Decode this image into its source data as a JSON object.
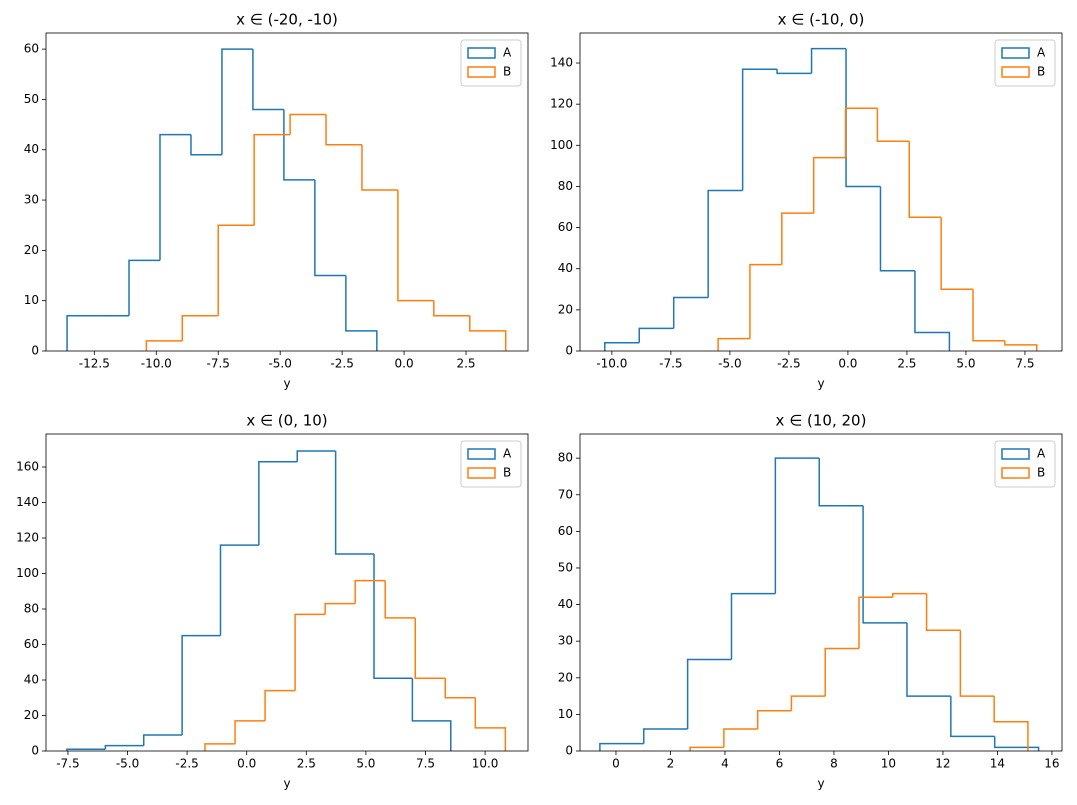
{
  "chart_data": [
    {
      "type": "histogram",
      "title": "x ∈ (-20, -10)",
      "x_label": "y",
      "legend": "upper right",
      "xlim": [
        -14.45,
        5.0
      ],
      "ylim": [
        0,
        63.2
      ],
      "xticks": [
        -12.5,
        {
          "value": -10,
          "label": "-10.0"
        },
        -7.5,
        {
          "value": -5,
          "label": "-5.0"
        },
        -2.5,
        {
          "value": 0,
          "label": "0.0"
        },
        2.5
      ],
      "yticks": [
        0,
        10,
        20,
        30,
        40,
        50,
        60
      ],
      "series": [
        {
          "name": "A",
          "color": "#1f77b4",
          "bins": [
            -13.6,
            -12.35,
            -11.1,
            -9.85,
            -8.6,
            -7.35,
            -6.1,
            -4.85,
            -3.6,
            -2.35,
            -1.1
          ],
          "values": [
            7,
            7,
            18,
            43,
            39,
            60,
            48,
            34,
            15,
            4
          ]
        },
        {
          "name": "B",
          "color": "#ff7f0e",
          "bins": [
            -10.4,
            -8.95,
            -7.5,
            -6.05,
            -4.6,
            -3.15,
            -1.7,
            -0.25,
            1.2,
            2.65,
            4.1
          ],
          "values": [
            2,
            7,
            25,
            43,
            47,
            41,
            32,
            10,
            7,
            4
          ]
        }
      ]
    },
    {
      "type": "histogram",
      "title": "x ∈ (-10, 0)",
      "x_label": "y",
      "legend": "upper right",
      "xlim": [
        -11.35,
        9.07
      ],
      "ylim": [
        0,
        154.6
      ],
      "xticks": [
        {
          "value": -10,
          "label": "-10.0"
        },
        -7.5,
        {
          "value": -5,
          "label": "-5.0"
        },
        -2.5,
        {
          "value": 0,
          "label": "0.0"
        },
        2.5,
        {
          "value": 5,
          "label": "5.0"
        },
        7.5
      ],
      "yticks": [
        0,
        20,
        40,
        60,
        80,
        100,
        120,
        140
      ],
      "series": [
        {
          "name": "A",
          "color": "#1f77b4",
          "bins": [
            -10.3,
            -8.84,
            -7.38,
            -5.92,
            -4.46,
            -3.0,
            -1.54,
            -0.08,
            1.38,
            2.84,
            4.3
          ],
          "values": [
            4,
            11,
            26,
            78,
            137,
            135,
            147,
            80,
            39,
            9
          ]
        },
        {
          "name": "B",
          "color": "#ff7f0e",
          "bins": [
            -5.5,
            -4.15,
            -2.8,
            -1.45,
            -0.1,
            1.25,
            2.6,
            3.95,
            5.3,
            6.65,
            8.0
          ],
          "values": [
            6,
            42,
            67,
            94,
            118,
            102,
            65,
            30,
            5,
            3
          ]
        }
      ]
    },
    {
      "type": "histogram",
      "title": "x ∈ (0, 10)",
      "x_label": "y",
      "legend": "upper right",
      "xlim": [
        -8.42,
        11.8
      ],
      "ylim": [
        0,
        178.6
      ],
      "xticks": [
        -7.5,
        {
          "value": -5,
          "label": "-5.0"
        },
        -2.5,
        {
          "value": 0,
          "label": "0.0"
        },
        2.5,
        {
          "value": 5,
          "label": "5.0"
        },
        7.5,
        {
          "value": 10,
          "label": "10.0"
        }
      ],
      "yticks": [
        0,
        20,
        40,
        60,
        80,
        100,
        120,
        140,
        160
      ],
      "series": [
        {
          "name": "A",
          "color": "#1f77b4",
          "bins": [
            -7.54,
            -5.93,
            -4.32,
            -2.71,
            -1.1,
            0.51,
            2.12,
            3.73,
            5.34,
            6.95,
            8.56
          ],
          "values": [
            1,
            3,
            9,
            65,
            116,
            163,
            169,
            111,
            41,
            17
          ]
        },
        {
          "name": "B",
          "color": "#ff7f0e",
          "bins": [
            -1.75,
            -0.49,
            0.77,
            2.03,
            3.29,
            4.55,
            5.81,
            7.07,
            8.33,
            9.59,
            10.85
          ],
          "values": [
            4,
            17,
            34,
            77,
            83,
            96,
            75,
            41,
            30,
            13
          ]
        }
      ]
    },
    {
      "type": "histogram",
      "title": "x ∈ (10, 20)",
      "x_label": "y",
      "legend": "upper right",
      "xlim": [
        -1.32,
        16.37
      ],
      "ylim": [
        0,
        86.6
      ],
      "xticks": [
        0,
        2,
        4,
        6,
        8,
        10,
        12,
        14,
        16
      ],
      "yticks": [
        0,
        10,
        20,
        30,
        40,
        50,
        60,
        70,
        80
      ],
      "series": [
        {
          "name": "A",
          "color": "#1f77b4",
          "bins": [
            -0.59,
            1.02,
            2.63,
            4.24,
            5.85,
            7.46,
            9.07,
            10.68,
            12.29,
            13.9,
            15.51
          ],
          "values": [
            2,
            6,
            25,
            43,
            80,
            67,
            35,
            15,
            4,
            1
          ]
        },
        {
          "name": "B",
          "color": "#ff7f0e",
          "bins": [
            2.72,
            3.96,
            5.2,
            6.44,
            7.68,
            8.92,
            10.16,
            11.4,
            12.64,
            13.88,
            15.12
          ],
          "values": [
            1,
            6,
            11,
            15,
            28,
            42,
            43,
            33,
            15,
            8
          ]
        }
      ]
    }
  ]
}
